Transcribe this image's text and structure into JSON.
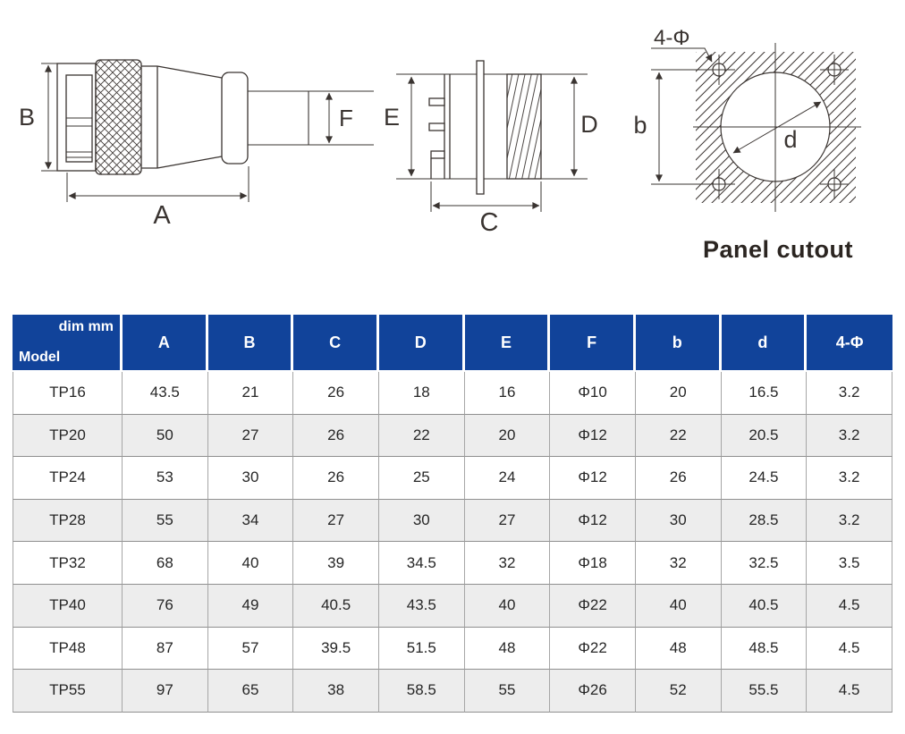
{
  "colors": {
    "header_blue": "#11439a",
    "row_stripe": "#ededed",
    "line_color": "#3a3431",
    "caption_color": "#2b2521"
  },
  "diagrams": {
    "plug_view": {
      "labels": {
        "B": "B",
        "F": "F",
        "A": "A"
      }
    },
    "receptacle_view": {
      "labels": {
        "E": "E",
        "D": "D",
        "C": "C"
      }
    },
    "panel_cutout": {
      "labels": {
        "holes": "4-Φ",
        "b": "b",
        "d": "d"
      },
      "caption": "Panel cutout"
    }
  },
  "table": {
    "header": {
      "corner_top": "dim mm",
      "corner_bottom": "Model",
      "columns": [
        "A",
        "B",
        "C",
        "D",
        "E",
        "F",
        "b",
        "d",
        "4-Φ"
      ]
    },
    "rows": [
      {
        "model": "TP16",
        "values": [
          "43.5",
          "21",
          "26",
          "18",
          "16",
          "Φ10",
          "20",
          "16.5",
          "3.2"
        ]
      },
      {
        "model": "TP20",
        "values": [
          "50",
          "27",
          "26",
          "22",
          "20",
          "Φ12",
          "22",
          "20.5",
          "3.2"
        ]
      },
      {
        "model": "TP24",
        "values": [
          "53",
          "30",
          "26",
          "25",
          "24",
          "Φ12",
          "26",
          "24.5",
          "3.2"
        ]
      },
      {
        "model": "TP28",
        "values": [
          "55",
          "34",
          "27",
          "30",
          "27",
          "Φ12",
          "30",
          "28.5",
          "3.2"
        ]
      },
      {
        "model": "TP32",
        "values": [
          "68",
          "40",
          "39",
          "34.5",
          "32",
          "Φ18",
          "32",
          "32.5",
          "3.5"
        ]
      },
      {
        "model": "TP40",
        "values": [
          "76",
          "49",
          "40.5",
          "43.5",
          "40",
          "Φ22",
          "40",
          "40.5",
          "4.5"
        ]
      },
      {
        "model": "TP48",
        "values": [
          "87",
          "57",
          "39.5",
          "51.5",
          "48",
          "Φ22",
          "48",
          "48.5",
          "4.5"
        ]
      },
      {
        "model": "TP55",
        "values": [
          "97",
          "65",
          "38",
          "58.5",
          "55",
          "Φ26",
          "52",
          "55.5",
          "4.5"
        ]
      }
    ]
  }
}
